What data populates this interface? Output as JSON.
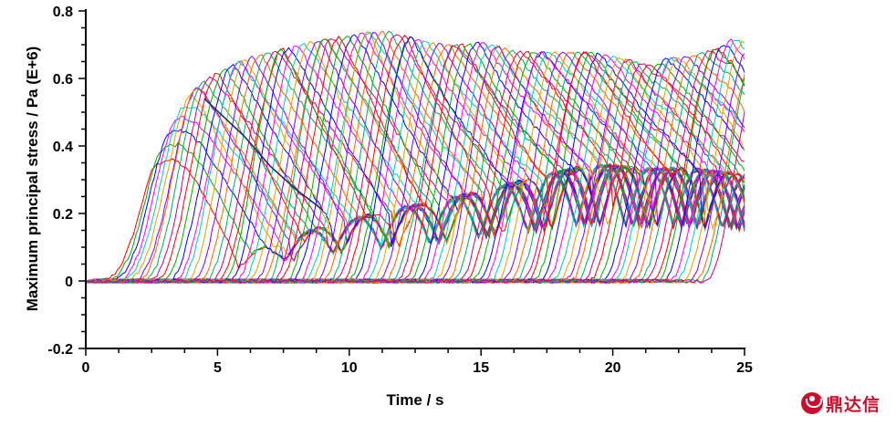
{
  "chart_data": {
    "type": "line",
    "title": "",
    "xlabel": "Time / s",
    "ylabel": "Maximum principal stress / Pa (E+6)",
    "xlim": [
      0,
      25
    ],
    "ylim": [
      -0.2,
      0.8
    ],
    "xticks": [
      "0",
      "5",
      "10",
      "15",
      "20",
      "25"
    ],
    "yticks": [
      "-0.2",
      "0",
      "0.2",
      "0.4",
      "0.6",
      "0.8"
    ],
    "grid": false,
    "legend": "none",
    "series_count": 100,
    "envelope_upper": {
      "x": [
        0,
        0.5,
        1,
        1.5,
        2,
        2.5,
        3,
        3.5,
        4,
        4.5,
        5,
        5.5,
        6,
        7,
        8,
        9,
        10,
        10.5,
        11,
        11.5,
        12,
        13,
        14,
        15,
        16,
        17,
        18,
        19,
        20,
        21,
        21.5,
        22,
        23,
        24,
        24.5,
        25
      ],
      "y": [
        0,
        0.01,
        0.06,
        0.13,
        0.22,
        0.33,
        0.42,
        0.5,
        0.56,
        0.6,
        0.62,
        0.64,
        0.66,
        0.68,
        0.7,
        0.72,
        0.73,
        0.74,
        0.74,
        0.74,
        0.73,
        0.71,
        0.7,
        0.71,
        0.69,
        0.68,
        0.68,
        0.68,
        0.67,
        0.65,
        0.64,
        0.66,
        0.67,
        0.69,
        0.72,
        0.71
      ]
    },
    "diagonal_crest": {
      "x": [
        4.5,
        6,
        7,
        8,
        9
      ],
      "y": [
        0.54,
        0.43,
        0.34,
        0.27,
        0.21
      ]
    },
    "lower_envelope": {
      "x": [
        1,
        2,
        3,
        4,
        5,
        6,
        7,
        8,
        9,
        10,
        11,
        12,
        13,
        14,
        15,
        16,
        17,
        18,
        19,
        20,
        21,
        22,
        23,
        24,
        25
      ],
      "y": [
        0.0,
        0.01,
        0.02,
        0.04,
        0.06,
        0.08,
        0.11,
        0.14,
        0.17,
        0.19,
        0.21,
        0.23,
        0.24,
        0.26,
        0.28,
        0.3,
        0.32,
        0.34,
        0.36,
        0.36,
        0.35,
        0.35,
        0.35,
        0.34,
        0.33
      ]
    },
    "colors": [
      "#ff0000",
      "#00aa00",
      "#0000ff",
      "#ff00ff",
      "#00c8c8",
      "#e0a000",
      "#8000ff",
      "#ff6600",
      "#00aa66",
      "#d0007a"
    ]
  },
  "logo": {
    "text": "鼎达信",
    "color": "#c8102e"
  }
}
